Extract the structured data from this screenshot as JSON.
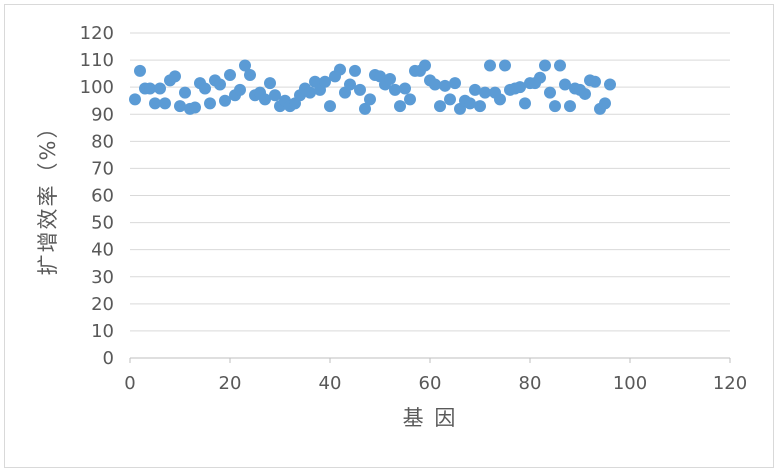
{
  "chart_data": {
    "type": "scatter",
    "xlabel": "基 因",
    "ylabel": "扩增效率（%）",
    "xlim": [
      0,
      120
    ],
    "ylim": [
      0,
      120
    ],
    "x_ticks": [
      0,
      20,
      40,
      60,
      80,
      100,
      120
    ],
    "y_ticks": [
      0,
      10,
      20,
      30,
      40,
      50,
      60,
      70,
      80,
      90,
      100,
      110,
      120
    ],
    "grid": "horizontal",
    "legend": "none",
    "marker_color": "#5b9bd5",
    "series": [
      {
        "x": [
          1,
          2,
          3,
          4,
          5,
          6,
          7,
          8,
          9,
          10,
          11,
          12,
          13,
          14,
          15,
          16,
          17,
          18,
          19,
          20,
          21,
          22,
          23,
          24,
          25,
          26,
          27,
          28,
          29,
          30,
          31,
          32,
          33,
          34,
          35,
          36,
          37,
          38,
          39,
          40,
          41,
          42,
          43,
          44,
          45,
          46,
          47,
          48,
          49,
          50,
          51,
          52,
          53,
          54,
          55,
          56,
          57,
          58,
          59,
          60,
          61,
          62,
          63,
          64,
          65,
          66,
          67,
          68,
          69,
          70,
          71,
          72,
          73,
          74,
          75,
          76,
          77,
          78,
          79,
          80,
          81,
          82,
          83,
          84,
          85,
          86,
          87,
          88,
          89,
          90,
          91,
          92,
          93,
          94,
          95,
          96
        ],
        "y": [
          95.5,
          106,
          99.5,
          99.5,
          94,
          99.5,
          94,
          102.5,
          104,
          93,
          98,
          92,
          92.5,
          101.5,
          99.5,
          94,
          102.5,
          101,
          95,
          104.5,
          97,
          99,
          108,
          104.5,
          97,
          98,
          95.5,
          101.5,
          97,
          93,
          95,
          93,
          94,
          97,
          99.5,
          98,
          102,
          99,
          102,
          93,
          104,
          106.5,
          98,
          101,
          106,
          99,
          92,
          95.5,
          104.5,
          104,
          101,
          103,
          99,
          93,
          99.5,
          95.5,
          106,
          106,
          108,
          102.5,
          101,
          93,
          100.5,
          95.5,
          101.5,
          92,
          95,
          94,
          99,
          93,
          98,
          108,
          98,
          95.5,
          108,
          99,
          99.5,
          100,
          94,
          101.5,
          101.5,
          103.5,
          108,
          98,
          93,
          108,
          101,
          93,
          99.5,
          99,
          97.5,
          102.5,
          102,
          92,
          94,
          101
        ]
      }
    ]
  }
}
